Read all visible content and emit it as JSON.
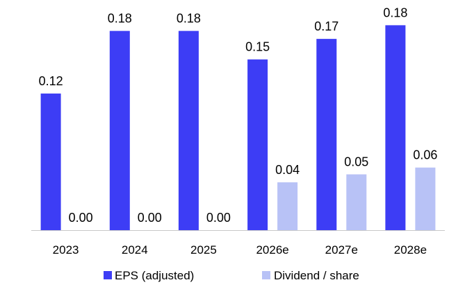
{
  "chart_data": {
    "type": "bar",
    "categories": [
      "2023",
      "2024",
      "2025",
      "2026e",
      "2027e",
      "2028e"
    ],
    "series": [
      {
        "name": "EPS (adjusted)",
        "color": "#3d3df5",
        "values": [
          0.12,
          0.18,
          0.18,
          0.15,
          0.17,
          0.18
        ],
        "labels": [
          "0.12",
          "0.18",
          "0.18",
          "0.15",
          "0.17",
          "0.18"
        ],
        "raw_values": [
          0.12,
          0.175,
          0.175,
          0.15,
          0.168,
          0.18
        ]
      },
      {
        "name": "Dividend / share",
        "color": "#b8c2f6",
        "values": [
          0.0,
          0.0,
          0.0,
          0.04,
          0.05,
          0.06
        ],
        "labels": [
          "0.00",
          "0.00",
          "0.00",
          "0.04",
          "0.05",
          "0.06"
        ],
        "raw_values": [
          0.0,
          0.0,
          0.0,
          0.042,
          0.049,
          0.055
        ]
      }
    ],
    "ylim": [
      0,
      0.19
    ],
    "grid": false,
    "legend": "bottom-center"
  }
}
